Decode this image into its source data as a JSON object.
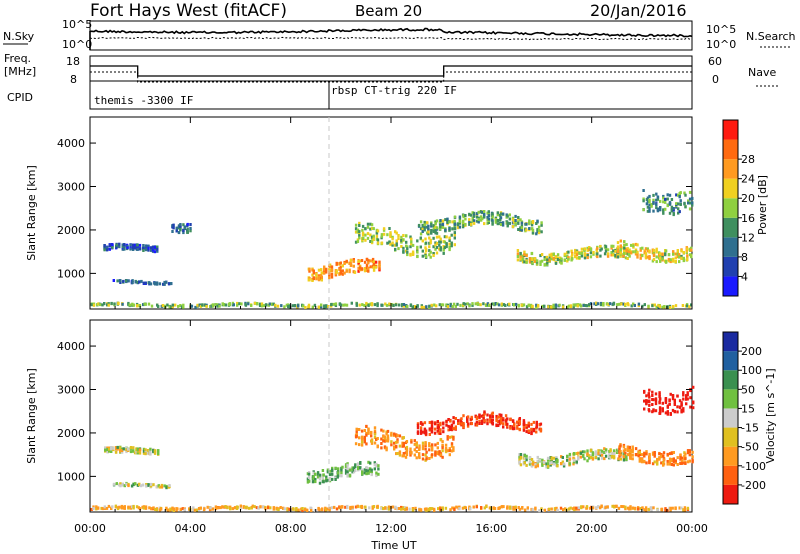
{
  "header": {
    "title": "Fort Hays West (fitACF)",
    "beam": "Beam 20",
    "date": "20/Jan/2016"
  },
  "params": {
    "left_top_label": "N.Sky",
    "left_mid_label_1": "Freq.",
    "left_mid_label_2": "[MHz]",
    "left_bottom_label": "CPID",
    "right_top_label": "N.Search",
    "right_mid_label": "Nave",
    "noise_ticks": [
      "10^5",
      "10^0"
    ],
    "freq_ticks": [
      "18",
      "8"
    ],
    "nave_ticks": [
      "60",
      "0"
    ],
    "cpid_segments": [
      {
        "start_h": 0,
        "label": "themis -3300 IF"
      },
      {
        "start_h": 9.7,
        "label": "rbsp CT-trig 220 IF"
      }
    ],
    "freq_steps_mhz": [
      {
        "start_h": 0,
        "end_h": 1.9,
        "value": 14
      },
      {
        "start_h": 1.9,
        "end_h": 14.1,
        "value": 10
      },
      {
        "start_h": 14.1,
        "end_h": 24,
        "value": 14
      }
    ]
  },
  "x_axis": {
    "title": "Time UT",
    "ticks": [
      "00:00",
      "04:00",
      "08:00",
      "12:00",
      "16:00",
      "20:00",
      "00:00"
    ],
    "tick_hours": [
      0,
      4,
      8,
      12,
      16,
      20,
      24
    ]
  },
  "colors": {
    "power_scale": [
      "#1a1aff",
      "#2040b0",
      "#2f6f8f",
      "#3f8f5f",
      "#8fd040",
      "#f0d020",
      "#ff9a20",
      "#ff6a10",
      "#ff1a10"
    ],
    "velocity_scale": [
      "#1a2aa0",
      "#2060a0",
      "#3a9050",
      "#70c040",
      "#cccccc",
      "#e0c020",
      "#ff9a20",
      "#ff6010",
      "#ee1a10"
    ]
  },
  "chart_data": [
    {
      "type": "heatmap",
      "title": "Power",
      "ylabel": "Slant Range [km]",
      "xlabel": "Time UT",
      "xlim": [
        0,
        24
      ],
      "ylim": [
        180,
        4600
      ],
      "y_ticks": [
        1000,
        2000,
        3000,
        4000
      ],
      "colorbar": {
        "label": "Power [dB]",
        "ticks": [
          "4",
          "8",
          "12",
          "16",
          "20",
          "24",
          "28"
        ],
        "range": [
          0,
          30
        ]
      },
      "echo_regions": [
        {
          "t_start": 0,
          "t_end": 24,
          "range_center": 300,
          "range_width": 60,
          "value": 14
        },
        {
          "t_start": 0.5,
          "t_end": 2.7,
          "range_center": 1600,
          "range_width": 120,
          "value": 6
        },
        {
          "t_start": 0.9,
          "t_end": 3.2,
          "range_center": 820,
          "range_width": 60,
          "value": 7
        },
        {
          "t_start": 3.2,
          "t_end": 4.0,
          "range_center": 2150,
          "range_width": 200,
          "value": 8
        },
        {
          "t_start": 8.6,
          "t_end": 11.5,
          "range_center": 1100,
          "range_width": 300,
          "value": 22
        },
        {
          "t_start": 10.5,
          "t_end": 14.5,
          "range_center": 1800,
          "range_width": 450,
          "value": 15
        },
        {
          "t_start": 13,
          "t_end": 18,
          "range_center": 2200,
          "range_width": 300,
          "value": 13
        },
        {
          "t_start": 17,
          "t_end": 21.5,
          "range_center": 1450,
          "range_width": 250,
          "value": 16
        },
        {
          "t_start": 21,
          "t_end": 24,
          "range_center": 1550,
          "range_width": 300,
          "value": 18
        },
        {
          "t_start": 22,
          "t_end": 24,
          "range_center": 2800,
          "range_width": 500,
          "value": 11
        }
      ]
    },
    {
      "type": "heatmap",
      "title": "Velocity",
      "ylabel": "Slant Range [km]",
      "xlabel": "Time UT",
      "xlim": [
        0,
        24
      ],
      "ylim": [
        180,
        4600
      ],
      "y_ticks": [
        1000,
        2000,
        3000,
        4000
      ],
      "colorbar": {
        "label": "Velocity [m s^-1]",
        "ticks": [
          "200",
          "100",
          "50",
          "15",
          "-15",
          "-50",
          "-100",
          "-200"
        ],
        "range": [
          -250,
          250
        ]
      },
      "echo_regions": [
        {
          "t_start": 0,
          "t_end": 24,
          "range_center": 300,
          "range_width": 60,
          "value": -40
        },
        {
          "t_start": 0.5,
          "t_end": 2.7,
          "range_center": 1600,
          "range_width": 120,
          "value": 0
        },
        {
          "t_start": 0.9,
          "t_end": 3.2,
          "range_center": 820,
          "range_width": 60,
          "value": 5
        },
        {
          "t_start": 8.6,
          "t_end": 11.5,
          "range_center": 1100,
          "range_width": 300,
          "value": 30
        },
        {
          "t_start": 10.5,
          "t_end": 14.5,
          "range_center": 1800,
          "range_width": 450,
          "value": -60
        },
        {
          "t_start": 13,
          "t_end": 18,
          "range_center": 2250,
          "range_width": 300,
          "value": -160
        },
        {
          "t_start": 17,
          "t_end": 21.5,
          "range_center": 1450,
          "range_width": 250,
          "value": 0
        },
        {
          "t_start": 21,
          "t_end": 24,
          "range_center": 1550,
          "range_width": 300,
          "value": -70
        },
        {
          "t_start": 22,
          "t_end": 24,
          "range_center": 2900,
          "range_width": 500,
          "value": -190
        }
      ]
    }
  ]
}
